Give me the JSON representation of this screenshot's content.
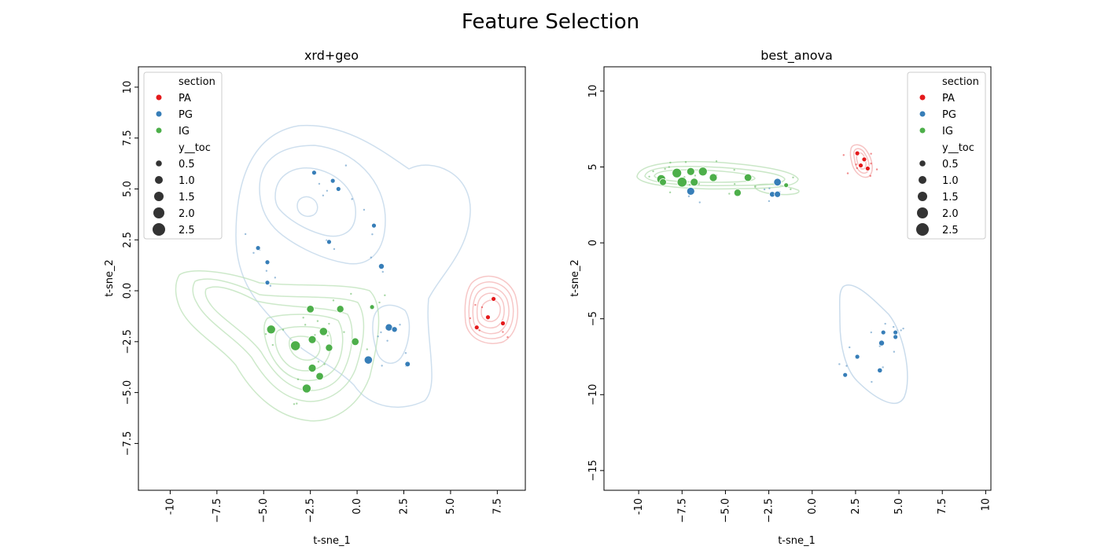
{
  "figure": {
    "suptitle": "Feature Selection"
  },
  "chart_data": [
    {
      "type": "scatter",
      "title": "xrd+geo",
      "xlabel": "t-sne_1",
      "ylabel": "t-sne_2",
      "xlim": [
        -11.7,
        9.0
      ],
      "ylim": [
        -9.8,
        11.0
      ],
      "xticks": [
        -10.0,
        -7.5,
        -5.0,
        -2.5,
        0.0,
        2.5,
        5.0,
        7.5
      ],
      "yticks": [
        -7.5,
        -5.0,
        -2.5,
        0.0,
        2.5,
        5.0,
        7.5,
        10.0
      ],
      "grid": false,
      "legend": {
        "placement": "top-left",
        "hue_title": "section",
        "hue_entries": [
          {
            "label": "PA",
            "color": "#e41a1c"
          },
          {
            "label": "PG",
            "color": "#377eb8"
          },
          {
            "label": "IG",
            "color": "#4daf4a"
          }
        ],
        "size_title": "y__toc",
        "size_entries": [
          "0.5",
          "1.0",
          "1.5",
          "2.0",
          "2.5"
        ]
      },
      "series": [
        {
          "name": "PA",
          "color": "#e41a1c",
          "points": [
            {
              "x": 7.3,
              "y": -0.4,
              "size": 0.5
            },
            {
              "x": 7.0,
              "y": -1.3,
              "size": 0.5
            },
            {
              "x": 6.4,
              "y": -1.8,
              "size": 0.5
            },
            {
              "x": 7.8,
              "y": -1.6,
              "size": 0.5
            }
          ]
        },
        {
          "name": "PG",
          "color": "#377eb8",
          "points": [
            {
              "x": -2.3,
              "y": 5.8,
              "size": 0.5
            },
            {
              "x": -1.3,
              "y": 5.4,
              "size": 0.5
            },
            {
              "x": -1.0,
              "y": 5.0,
              "size": 0.5
            },
            {
              "x": -1.5,
              "y": 2.4,
              "size": 0.5
            },
            {
              "x": 0.9,
              "y": 3.2,
              "size": 0.5
            },
            {
              "x": 1.3,
              "y": 1.2,
              "size": 0.8
            },
            {
              "x": -5.3,
              "y": 2.1,
              "size": 0.5
            },
            {
              "x": -4.8,
              "y": 1.4,
              "size": 0.5
            },
            {
              "x": -4.8,
              "y": 0.4,
              "size": 0.5
            },
            {
              "x": 1.7,
              "y": -1.8,
              "size": 1.3
            },
            {
              "x": 2.0,
              "y": -1.9,
              "size": 0.8
            },
            {
              "x": 0.6,
              "y": -3.4,
              "size": 1.6
            },
            {
              "x": 2.7,
              "y": -3.6,
              "size": 0.7
            }
          ]
        },
        {
          "name": "IG",
          "color": "#4daf4a",
          "points": [
            {
              "x": -2.5,
              "y": -0.9,
              "size": 1.4
            },
            {
              "x": -0.9,
              "y": -0.9,
              "size": 1.3
            },
            {
              "x": 0.8,
              "y": -0.8,
              "size": 0.5
            },
            {
              "x": -4.6,
              "y": -1.9,
              "size": 1.8
            },
            {
              "x": -1.8,
              "y": -2.0,
              "size": 1.6
            },
            {
              "x": -2.4,
              "y": -2.4,
              "size": 1.5
            },
            {
              "x": -3.3,
              "y": -2.7,
              "size": 2.1
            },
            {
              "x": -1.5,
              "y": -2.8,
              "size": 1.3
            },
            {
              "x": -0.1,
              "y": -2.5,
              "size": 1.4
            },
            {
              "x": -2.4,
              "y": -3.8,
              "size": 1.5
            },
            {
              "x": -2.0,
              "y": -4.2,
              "size": 1.4
            },
            {
              "x": -2.7,
              "y": -4.8,
              "size": 1.8
            }
          ]
        }
      ]
    },
    {
      "type": "scatter",
      "title": "best_anova",
      "xlabel": "t-sne_1",
      "ylabel": "t-sne_2",
      "xlim": [
        -12.0,
        10.3
      ],
      "ylim": [
        -16.3,
        11.6
      ],
      "xticks": [
        -10.0,
        -7.5,
        -5.0,
        -2.5,
        0.0,
        2.5,
        5.0,
        7.5,
        10.0
      ],
      "yticks": [
        -15,
        -10,
        -5,
        0,
        5,
        10
      ],
      "grid": false,
      "legend": {
        "placement": "top-right",
        "hue_title": "section",
        "hue_entries": [
          {
            "label": "PA",
            "color": "#e41a1c"
          },
          {
            "label": "PG",
            "color": "#377eb8"
          },
          {
            "label": "IG",
            "color": "#4daf4a"
          }
        ],
        "size_title": "y__toc",
        "size_entries": [
          "0.5",
          "1.0",
          "1.5",
          "2.0",
          "2.5"
        ]
      },
      "series": [
        {
          "name": "PA",
          "color": "#e41a1c",
          "points": [
            {
              "x": 2.6,
              "y": 5.9,
              "size": 0.5
            },
            {
              "x": 3.0,
              "y": 5.5,
              "size": 0.5
            },
            {
              "x": 2.8,
              "y": 5.1,
              "size": 0.5
            },
            {
              "x": 3.2,
              "y": 4.9,
              "size": 0.5
            }
          ]
        },
        {
          "name": "PG",
          "color": "#377eb8",
          "points": [
            {
              "x": -7.0,
              "y": 3.4,
              "size": 1.5
            },
            {
              "x": -2.3,
              "y": 3.2,
              "size": 0.8
            },
            {
              "x": -2.0,
              "y": 4.0,
              "size": 1.4
            },
            {
              "x": -2.0,
              "y": 3.2,
              "size": 1.0
            },
            {
              "x": 4.1,
              "y": -5.9,
              "size": 0.5
            },
            {
              "x": 4.8,
              "y": -5.9,
              "size": 0.5
            },
            {
              "x": 4.8,
              "y": -6.2,
              "size": 0.5
            },
            {
              "x": 4.0,
              "y": -6.6,
              "size": 0.8
            },
            {
              "x": 2.6,
              "y": -7.5,
              "size": 0.5
            },
            {
              "x": 3.9,
              "y": -8.4,
              "size": 0.6
            },
            {
              "x": 1.9,
              "y": -8.7,
              "size": 0.5
            }
          ]
        },
        {
          "name": "IG",
          "color": "#4daf4a",
          "points": [
            {
              "x": -8.7,
              "y": 4.2,
              "size": 1.8
            },
            {
              "x": -8.6,
              "y": 4.0,
              "size": 1.2
            },
            {
              "x": -7.8,
              "y": 4.6,
              "size": 2.0
            },
            {
              "x": -7.5,
              "y": 4.0,
              "size": 2.1
            },
            {
              "x": -7.0,
              "y": 4.7,
              "size": 1.5
            },
            {
              "x": -6.8,
              "y": 4.0,
              "size": 1.5
            },
            {
              "x": -6.3,
              "y": 4.7,
              "size": 1.8
            },
            {
              "x": -5.7,
              "y": 4.3,
              "size": 1.5
            },
            {
              "x": -3.7,
              "y": 4.3,
              "size": 1.4
            },
            {
              "x": -4.3,
              "y": 3.3,
              "size": 1.3
            },
            {
              "x": -1.5,
              "y": 3.8,
              "size": 0.5
            }
          ]
        }
      ]
    }
  ]
}
